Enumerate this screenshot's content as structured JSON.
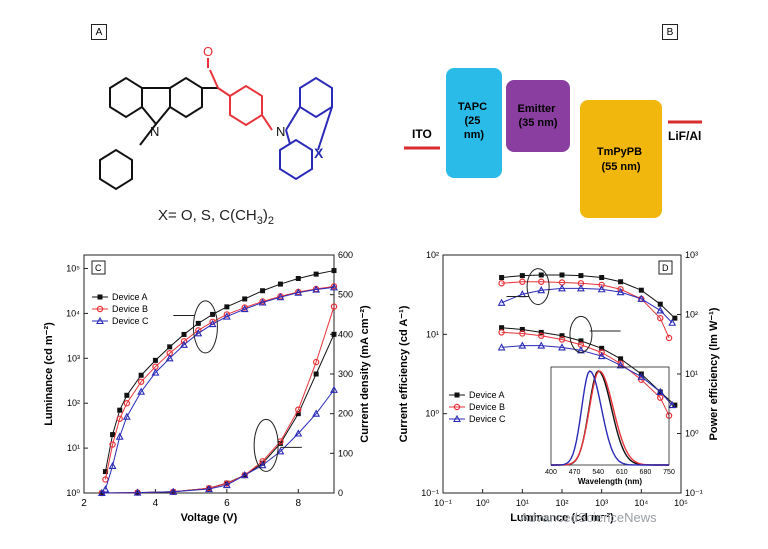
{
  "panels": {
    "a": "A",
    "b": "B",
    "c": "C",
    "d": "D"
  },
  "molecule": {
    "atom_o": "O",
    "atom_n1": "N",
    "atom_n2": "N",
    "atom_x": "X",
    "substituent_prefix": "X= O, S, C(CH",
    "substituent_sub": "3",
    "substituent_suffix": ")",
    "substituent_sub2": "2",
    "colors": {
      "core": "#111111",
      "ketone": "#e8333a",
      "acceptor": "#2a2ab8"
    }
  },
  "energy_diagram": {
    "ito": "ITO",
    "lif": "LiF/Al",
    "layers": [
      {
        "lines": [
          "TAPC",
          "(25",
          "nm)"
        ],
        "color": "#2bbbe8"
      },
      {
        "lines": [
          "Emitter",
          "(35 nm)"
        ],
        "color": "#8a3fa0"
      },
      {
        "lines": [
          "TmPyPB",
          "(55 nm)"
        ],
        "color": "#f2b70c"
      }
    ],
    "line_color": "#d92b2b"
  },
  "chart_data": [
    {
      "type": "line",
      "panel": "C",
      "xlabel": "Voltage (V)",
      "ylabel_left": "Luminance (cd m⁻²)",
      "ylabel_right": "Current density (mA cm⁻²)",
      "xlim": [
        2,
        9
      ],
      "ylim_left": [
        1,
        200000
      ],
      "ylim_right": [
        0,
        600
      ],
      "xticks": [
        "2",
        "4",
        "6",
        "8"
      ],
      "yticks_left": [
        "10⁰",
        "10¹",
        "10²",
        "10³",
        "10⁴",
        "10⁵"
      ],
      "yticks_right": [
        "0",
        "100",
        "200",
        "300",
        "400",
        "500",
        "600"
      ],
      "legend": [
        "Device A",
        "Device B",
        "Device C"
      ],
      "series": [
        {
          "name": "Device A",
          "color": "#111111",
          "marker": "square",
          "luminance": [
            [
              2.6,
              3
            ],
            [
              2.8,
              20
            ],
            [
              3.0,
              70
            ],
            [
              3.2,
              150
            ],
            [
              3.6,
              420
            ],
            [
              4.0,
              900
            ],
            [
              4.4,
              1800
            ],
            [
              4.8,
              3400
            ],
            [
              5.2,
              6000
            ],
            [
              5.6,
              9500
            ],
            [
              6.0,
              14000
            ],
            [
              6.5,
              21000
            ],
            [
              7.0,
              32000
            ],
            [
              7.5,
              45000
            ],
            [
              8.0,
              60000
            ],
            [
              8.5,
              75000
            ],
            [
              9.0,
              90000
            ]
          ],
          "current_density": [
            [
              2.5,
              0
            ],
            [
              3.5,
              1
            ],
            [
              4.5,
              3
            ],
            [
              5.5,
              12
            ],
            [
              6.0,
              25
            ],
            [
              6.5,
              45
            ],
            [
              7.0,
              75
            ],
            [
              7.5,
              125
            ],
            [
              8.0,
              200
            ],
            [
              8.5,
              300
            ],
            [
              9.0,
              400
            ]
          ]
        },
        {
          "name": "Device B",
          "color": "#e8333a",
          "marker": "circle",
          "luminance": [
            [
              2.6,
              2
            ],
            [
              2.8,
              12
            ],
            [
              3.0,
              45
            ],
            [
              3.2,
              100
            ],
            [
              3.6,
              300
            ],
            [
              4.0,
              650
            ],
            [
              4.4,
              1300
            ],
            [
              4.8,
              2400
            ],
            [
              5.2,
              4200
            ],
            [
              5.6,
              6500
            ],
            [
              6.0,
              9500
            ],
            [
              6.5,
              13500
            ],
            [
              7.0,
              18500
            ],
            [
              7.5,
              24000
            ],
            [
              8.0,
              30000
            ],
            [
              8.5,
              35000
            ],
            [
              9.0,
              40000
            ]
          ],
          "current_density": [
            [
              2.5,
              0
            ],
            [
              3.5,
              1
            ],
            [
              4.5,
              3
            ],
            [
              5.5,
              12
            ],
            [
              6.0,
              24
            ],
            [
              6.5,
              45
            ],
            [
              7.0,
              80
            ],
            [
              7.5,
              130
            ],
            [
              8.0,
              210
            ],
            [
              8.5,
              330
            ],
            [
              9.0,
              470
            ]
          ]
        },
        {
          "name": "Device C",
          "color": "#2a2ab8",
          "marker": "triangle",
          "luminance": [
            [
              2.6,
              1.2
            ],
            [
              2.8,
              4
            ],
            [
              3.0,
              18
            ],
            [
              3.2,
              50
            ],
            [
              3.6,
              180
            ],
            [
              4.0,
              480
            ],
            [
              4.4,
              1000
            ],
            [
              4.8,
              2000
            ],
            [
              5.2,
              3600
            ],
            [
              5.6,
              5800
            ],
            [
              6.0,
              8500
            ],
            [
              6.5,
              12500
            ],
            [
              7.0,
              17500
            ],
            [
              7.5,
              23000
            ],
            [
              8.0,
              29000
            ],
            [
              8.5,
              34000
            ],
            [
              9.0,
              38000
            ]
          ],
          "current_density": [
            [
              2.5,
              0
            ],
            [
              3.5,
              1
            ],
            [
              4.5,
              3
            ],
            [
              5.5,
              10
            ],
            [
              6.0,
              20
            ],
            [
              6.5,
              45
            ],
            [
              7.0,
              70
            ],
            [
              7.5,
              105
            ],
            [
              8.0,
              150
            ],
            [
              8.5,
              200
            ],
            [
              9.0,
              260
            ]
          ]
        }
      ]
    },
    {
      "type": "line",
      "panel": "D",
      "xlabel": "Luminance (cd m⁻²)",
      "ylabel_left": "Current efficiency (cd A⁻¹)",
      "ylabel_right": "Power efficiency (lm W⁻¹)",
      "xlim": [
        0.1,
        100000
      ],
      "ylim_left": [
        0.1,
        100
      ],
      "ylim_right": [
        0.1,
        1000
      ],
      "xscale": "log",
      "xticks": [
        "10⁻¹",
        "10⁰",
        "10¹",
        "10²",
        "10³",
        "10⁴",
        "10⁵"
      ],
      "yticks_left": [
        "10⁻¹",
        "10⁰",
        "10¹",
        "10²"
      ],
      "yticks_right": [
        "10⁻¹",
        "10⁰",
        "10¹",
        "10²",
        "10³"
      ],
      "legend": [
        "Device A",
        "Device B",
        "Device C"
      ],
      "series": [
        {
          "name": "Device A",
          "color": "#111111",
          "marker": "square",
          "current_efficiency": [
            [
              3,
              52
            ],
            [
              10,
              55
            ],
            [
              30,
              56
            ],
            [
              100,
              56
            ],
            [
              300,
              55
            ],
            [
              1000,
              52
            ],
            [
              3000,
              46
            ],
            [
              10000,
              36
            ],
            [
              30000,
              24
            ],
            [
              70000,
              16
            ]
          ],
          "power_efficiency": [
            [
              3,
              60
            ],
            [
              10,
              56
            ],
            [
              30,
              50
            ],
            [
              100,
              44
            ],
            [
              300,
              36
            ],
            [
              1000,
              27
            ],
            [
              3000,
              18
            ],
            [
              10000,
              10
            ],
            [
              30000,
              5
            ],
            [
              70000,
              3
            ]
          ]
        },
        {
          "name": "Device B",
          "color": "#e8333a",
          "marker": "circle",
          "current_efficiency": [
            [
              3,
              44
            ],
            [
              10,
              46
            ],
            [
              30,
              46
            ],
            [
              100,
              45
            ],
            [
              300,
              44
            ],
            [
              1000,
              42
            ],
            [
              3000,
              37
            ],
            [
              10000,
              28
            ],
            [
              30000,
              16
            ],
            [
              50000,
              9
            ]
          ],
          "power_efficiency": [
            [
              3,
              50
            ],
            [
              10,
              48
            ],
            [
              30,
              44
            ],
            [
              100,
              38
            ],
            [
              300,
              31
            ],
            [
              1000,
              23
            ],
            [
              3000,
              15
            ],
            [
              10000,
              8
            ],
            [
              30000,
              4
            ],
            [
              50000,
              2
            ]
          ]
        },
        {
          "name": "Device C",
          "color": "#2a2ab8",
          "marker": "triangle",
          "current_efficiency": [
            [
              3,
              25
            ],
            [
              10,
              32
            ],
            [
              30,
              36
            ],
            [
              100,
              38
            ],
            [
              300,
              38
            ],
            [
              1000,
              37
            ],
            [
              3000,
              34
            ],
            [
              10000,
              28
            ],
            [
              30000,
              20
            ],
            [
              60000,
              14
            ]
          ],
          "power_efficiency": [
            [
              3,
              28
            ],
            [
              10,
              30
            ],
            [
              30,
              30
            ],
            [
              100,
              28
            ],
            [
              300,
              25
            ],
            [
              1000,
              20
            ],
            [
              3000,
              14
            ],
            [
              10000,
              9
            ],
            [
              30000,
              5
            ],
            [
              60000,
              3
            ]
          ]
        }
      ],
      "inset": {
        "xlabel": "Wavelength (nm)",
        "xlim": [
          400,
          750
        ],
        "xticks": [
          "400",
          "470",
          "540",
          "610",
          "680",
          "750"
        ],
        "series": [
          {
            "name": "Device A",
            "peak": 540,
            "width": 34
          },
          {
            "name": "Device B",
            "peak": 543,
            "width": 36
          },
          {
            "name": "Device C",
            "peak": 515,
            "width": 30
          }
        ]
      }
    }
  ],
  "watermark": "AdvancedScienceNews"
}
